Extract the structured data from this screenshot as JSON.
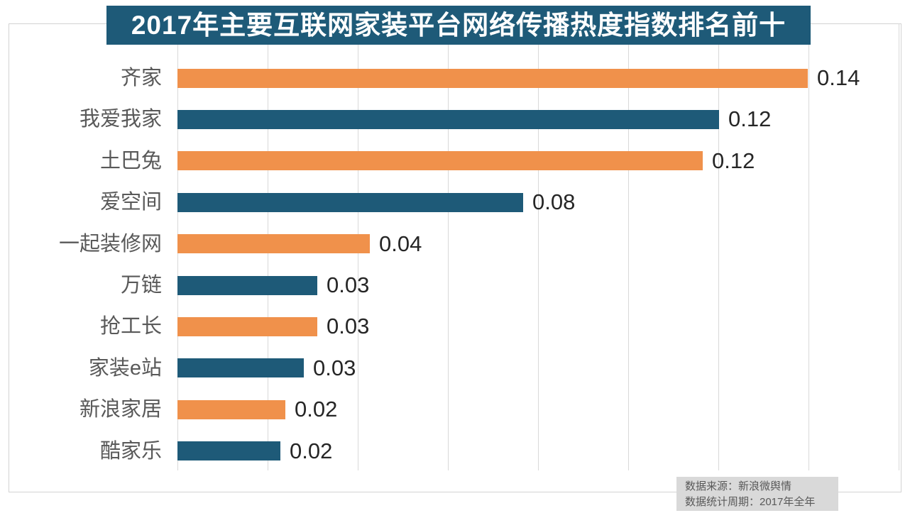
{
  "title": "2017年主要互联网家装平台网络传播热度指数排名前十",
  "source": {
    "line1": "数据来源：新浪微舆情",
    "line2": "数据统计周期：2017年全年"
  },
  "colors": {
    "title_bg": "#1e5a78",
    "title_text": "#ffffff",
    "bar_orange": "#f0914b",
    "bar_blue": "#1e5a78",
    "gridline": "#d9d9d9",
    "frame_border": "#d3d3d3",
    "category_text": "#595959",
    "value_text": "#262626",
    "source_bg": "#d9d9d9",
    "source_text": "#595959"
  },
  "chart_data": {
    "type": "bar",
    "orientation": "horizontal",
    "title": "2017年主要互联网家装平台网络传播热度指数排名前十",
    "categories": [
      "齐家",
      "我爱我家",
      "土巴兔",
      "爱空间",
      "一起装修网",
      "万链",
      "抢工长",
      "家装e站",
      "新浪家居",
      "酷家乐"
    ],
    "values": [
      0.14,
      0.12,
      0.12,
      0.08,
      0.04,
      0.03,
      0.03,
      0.03,
      0.02,
      0.02
    ],
    "value_labels": [
      "0.14",
      "0.12",
      "0.12",
      "0.08",
      "0.04",
      "0.03",
      "0.03",
      "0.03",
      "0.02",
      "0.02"
    ],
    "values_estimated_from_bar_lengths": [
      0.1398,
      0.1201,
      0.1165,
      0.0767,
      0.0427,
      0.031,
      0.031,
      0.028,
      0.0239,
      0.0228
    ],
    "bar_color_pattern": [
      "#f0914b",
      "#1e5a78"
    ],
    "xlim": [
      0,
      0.16
    ],
    "gridline_interval": 0.02,
    "grid": true,
    "legend": false,
    "value_labels_position": "right-of-bar"
  }
}
